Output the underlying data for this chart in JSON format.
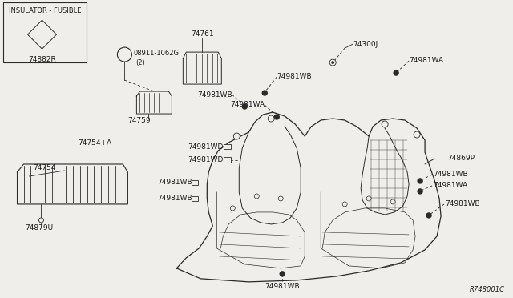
{
  "bg_color": "#f0eeea",
  "line_color": "#2a2a2a",
  "text_color": "#1a1a1a",
  "fig_width": 6.4,
  "fig_height": 3.72,
  "dpi": 100,
  "diagram_ref": "R748001C",
  "inset_label": "INSULATOR - FUSIBLE",
  "inset_part": "74882R",
  "font_size": 6.5
}
